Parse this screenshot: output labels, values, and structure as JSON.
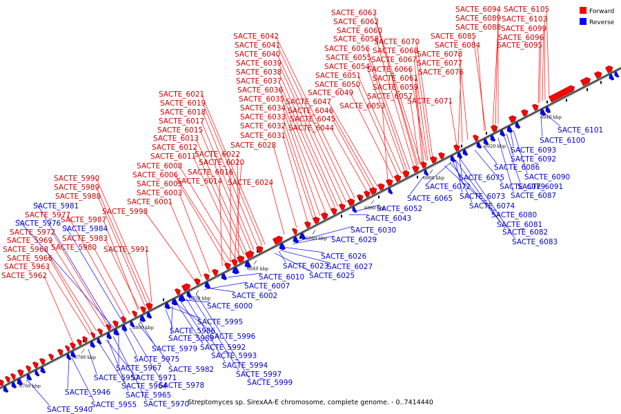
{
  "legend": {
    "items": [
      {
        "name": "Forward",
        "color": "#ff0000"
      },
      {
        "name": "Reverse",
        "color": "#0000ff"
      }
    ]
  },
  "caption": "Streptomyces sp. SirexAA-E chromosome, complete genome. - 0..7414440",
  "axis": {
    "ticks": [
      "6760 kbp",
      "6780 kbp",
      "6800 kbp",
      "6820 kbp",
      "6840 kbp",
      "6860 kbp",
      "6880 kbp",
      "6900 kbp",
      "6920 kbp",
      "6940 kbp"
    ]
  },
  "forward_labels": [
    "SACTE_6063",
    "SACTE_6062",
    "SACTE_6060",
    "SACTE_6070",
    "SACTE_6058",
    "SACTE_6068",
    "SACTE_6056",
    "SACTE_6067",
    "SACTE_6055",
    "SACTE_6066",
    "SACTE_6054",
    "SACTE_6061",
    "SACTE_6051",
    "SACTE_6059",
    "SACTE_6050",
    "SACTE_6057",
    "SACTE_6049",
    "SACTE_6053",
    "SACTE_6071",
    "SACTE_6047",
    "SACTE_6046",
    "SACTE_6045",
    "SACTE_6044",
    "SACTE_6042",
    "SACTE_6041",
    "SACTE_6040",
    "SACTE_6039",
    "SACTE_6038",
    "SACTE_6037",
    "SACTE_6036",
    "SACTE_6035",
    "SACTE_6034",
    "SACTE_6033",
    "SACTE_6032",
    "SACTE_6031",
    "SACTE_6028",
    "SACTE_6094",
    "SACTE_6105",
    "SACTE_6089",
    "SACTE_6103",
    "SACTE_6088",
    "SACTE_6099",
    "SACTE_6085",
    "SACTE_6096",
    "SACTE_6084",
    "SACTE_6095",
    "SACTE_6078",
    "SACTE_6077",
    "SACTE_6076",
    "SACTE_6021",
    "SACTE_6019",
    "SACTE_6018",
    "SACTE_6017",
    "SACTE_6015",
    "SACTE_6013",
    "SACTE_6012",
    "SACTE_6011",
    "SACTE_6022",
    "SACTE_6008",
    "SACTE_6020",
    "SACTE_6006",
    "SACTE_6016",
    "SACTE_6005",
    "SACTE_6014",
    "SACTE_6024",
    "SACTE_6003",
    "SACTE_6001",
    "SACTE_5998",
    "SACTE_5990",
    "SACTE_5989",
    "SACTE_5988",
    "SACTE_5977",
    "SACTE_5987",
    "SACTE_5972",
    "SACTE_5983",
    "SACTE_5969",
    "SACTE_5980",
    "SACTE_5991",
    "SACTE_5968",
    "SACTE_5966",
    "SACTE_5963",
    "SACTE_5962"
  ],
  "reverse_labels": [
    "SACTE_6101",
    "SACTE_6100",
    "SACTE_6093",
    "SACTE_6092",
    "SACTE_6086",
    "SACTE_6090",
    "SACTE_6075",
    "SACTE_6079",
    "SACTE_6091",
    "SACTE_6072",
    "SACTE_6073",
    "SACTE_6087",
    "SACTE_6065",
    "SACTE_6074",
    "SACTE_6080",
    "SACTE_6081",
    "SACTE_6082",
    "SACTE_6083",
    "SACTE_6052",
    "SACTE_6043",
    "SACTE_6030",
    "SACTE_6029",
    "SACTE_6026",
    "SACTE_6027",
    "SACTE_6023",
    "SACTE_6025",
    "SACTE_6010",
    "SACTE_6007",
    "SACTE_6002",
    "SACTE_6000",
    "SACTE_5995",
    "SACTE_5986",
    "SACTE_5996",
    "SACTE_5985",
    "SACTE_5979",
    "SACTE_5992",
    "SACTE_5975",
    "SACTE_5993",
    "SACTE_5967",
    "SACTE_5982",
    "SACTE_5994",
    "SACTE_5971",
    "SACTE_5997",
    "SACTE_5957",
    "SACTE_5964",
    "SACTE_5978",
    "SACTE_5999",
    "SACTE_5965",
    "SACTE_5946",
    "SACTE_5955",
    "SACTE_5970",
    "SACTE_5940",
    "SACTE_5981",
    "SACTE_5976",
    "SACTE_5984"
  ]
}
